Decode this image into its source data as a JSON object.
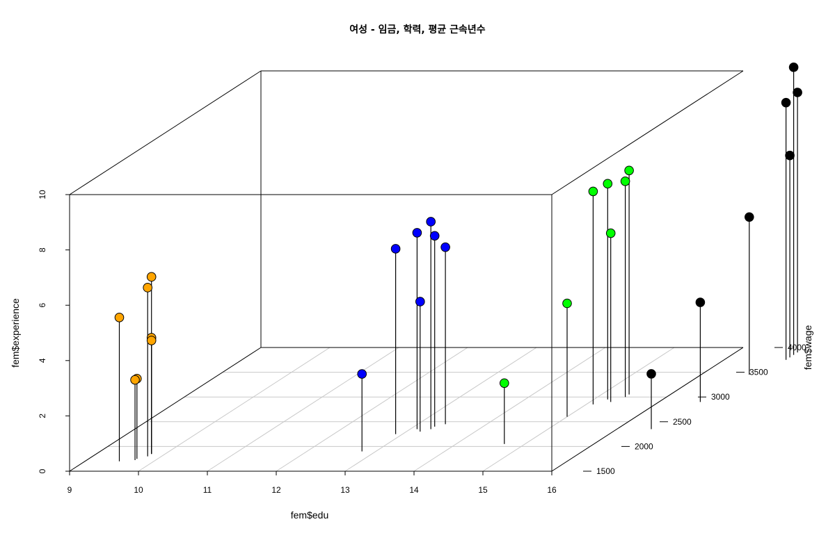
{
  "chart_data": {
    "type": "scatter",
    "title": "여성 - 임금, 학력, 평균 근속년수",
    "xlabel": "fem$edu",
    "ylabel": "fem$wage",
    "zlabel": "fem$experience",
    "xlim": [
      9,
      16
    ],
    "ylim": [
      1500,
      4000
    ],
    "zlim": [
      0,
      10
    ],
    "x_ticks": [
      "9",
      "10",
      "11",
      "12",
      "13",
      "14",
      "15",
      "16"
    ],
    "y_ticks": [
      "1500",
      "2000",
      "2500",
      "3000",
      "3500",
      "4000"
    ],
    "z_ticks": [
      "0",
      "2",
      "4",
      "6",
      "8",
      "10"
    ],
    "type_3d": "scatterplot3d",
    "grid": true,
    "series": [
      {
        "color": "#FFA500",
        "points": [
          {
            "x": 9.5,
            "y": 1700,
            "z": 5.2
          },
          {
            "x": 9.7,
            "y": 1725,
            "z": 2.9
          },
          {
            "x": 9.7,
            "y": 1750,
            "z": 2.9
          },
          {
            "x": 9.8,
            "y": 1800,
            "z": 6.1
          },
          {
            "x": 9.8,
            "y": 1850,
            "z": 6.4
          },
          {
            "x": 9.8,
            "y": 1850,
            "z": 4.2
          },
          {
            "x": 9.8,
            "y": 1850,
            "z": 4.1
          }
        ]
      },
      {
        "color": "#0000FF",
        "points": [
          {
            "x": 12.8,
            "y": 1900,
            "z": 2.8
          },
          {
            "x": 12.9,
            "y": 2250,
            "z": 6.7
          },
          {
            "x": 13.1,
            "y": 2350,
            "z": 7.1
          },
          {
            "x": 13.2,
            "y": 2300,
            "z": 4.7
          },
          {
            "x": 13.3,
            "y": 2350,
            "z": 7.5
          },
          {
            "x": 13.3,
            "y": 2400,
            "z": 6.9
          },
          {
            "x": 13.4,
            "y": 2450,
            "z": 6.4
          }
        ]
      },
      {
        "color": "#00FF00",
        "points": [
          {
            "x": 14.7,
            "y": 2050,
            "z": 2.2
          },
          {
            "x": 15.0,
            "y": 2600,
            "z": 4.1
          },
          {
            "x": 15.1,
            "y": 2850,
            "z": 7.7
          },
          {
            "x": 15.2,
            "y": 2950,
            "z": 7.8
          },
          {
            "x": 15.3,
            "y": 2900,
            "z": 6.1
          },
          {
            "x": 15.4,
            "y": 3000,
            "z": 7.8
          },
          {
            "x": 15.4,
            "y": 3050,
            "z": 8.1
          }
        ]
      },
      {
        "color": "#000000",
        "points": [
          {
            "x": 16.5,
            "y": 2350,
            "z": 2.0
          },
          {
            "x": 16.6,
            "y": 2900,
            "z": 3.6
          },
          {
            "x": 16.7,
            "y": 3450,
            "z": 5.7
          },
          {
            "x": 16.9,
            "y": 3800,
            "z": 7.3
          },
          {
            "x": 16.9,
            "y": 3750,
            "z": 9.3
          },
          {
            "x": 16.9,
            "y": 3850,
            "z": 10.4
          },
          {
            "x": 16.9,
            "y": 3900,
            "z": 9.4
          }
        ]
      }
    ]
  }
}
